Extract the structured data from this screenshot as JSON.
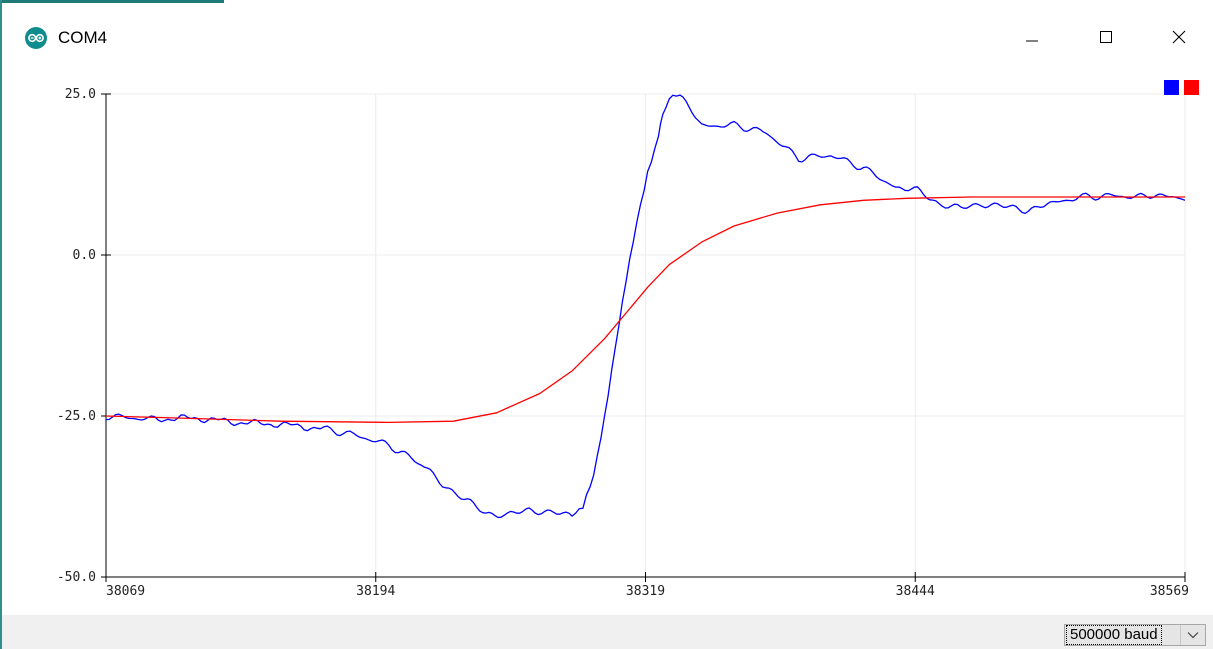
{
  "window": {
    "title": "COM4",
    "controls": {
      "minimize": "minimize-icon",
      "maximize": "maximize-icon",
      "close": "close-icon"
    }
  },
  "status_bar": {
    "baud_selected": "500000 baud"
  },
  "chart_data": {
    "type": "line",
    "ylim": [
      -50,
      25
    ],
    "xlim": [
      38069,
      38569
    ],
    "yticks": [
      "25.0",
      "0.0",
      "-25.0",
      "-50.0"
    ],
    "xticks": [
      "38069",
      "38194",
      "38319",
      "38444",
      "38569"
    ],
    "grid": true,
    "legend": "top-right",
    "series": [
      {
        "color": "#0000ff",
        "x": [
          38069,
          38090,
          38110,
          38130,
          38150,
          38170,
          38185,
          38200,
          38215,
          38225,
          38235,
          38245,
          38255,
          38265,
          38275,
          38285,
          38290,
          38295,
          38300,
          38305,
          38310,
          38315,
          38320,
          38325,
          38327,
          38330,
          38335,
          38345,
          38360,
          38375,
          38390,
          38405,
          38420,
          38435,
          38445,
          38455,
          38465,
          38475,
          38485,
          38495,
          38505,
          38520,
          38535,
          38550,
          38560,
          38569
        ],
        "values": [
          -25.0,
          -25.5,
          -25.3,
          -26.0,
          -26.3,
          -27.0,
          -28.0,
          -29.5,
          -32.5,
          -35.5,
          -38.0,
          -40.0,
          -40.5,
          -39.5,
          -40.0,
          -40.5,
          -39.0,
          -34.0,
          -25.0,
          -14.0,
          -3.5,
          5.5,
          13.0,
          18.5,
          22.0,
          24.5,
          24.8,
          20.0,
          20.2,
          19.0,
          15.0,
          15.5,
          13.5,
          10.5,
          10.0,
          8.0,
          7.2,
          8.0,
          7.5,
          7.0,
          7.8,
          9.0,
          9.2,
          9.0,
          9.5,
          8.5
        ]
      },
      {
        "color": "#ff0000",
        "x": [
          38069,
          38100,
          38150,
          38200,
          38230,
          38250,
          38270,
          38285,
          38300,
          38310,
          38320,
          38330,
          38345,
          38360,
          38380,
          38400,
          38420,
          38440,
          38470,
          38500,
          38569
        ],
        "values": [
          -25.0,
          -25.3,
          -25.8,
          -26.0,
          -25.8,
          -24.5,
          -21.5,
          -18.0,
          -13.0,
          -9.0,
          -5.0,
          -1.5,
          2.0,
          4.5,
          6.5,
          7.8,
          8.5,
          8.8,
          9.0,
          9.0,
          9.0
        ]
      }
    ]
  }
}
